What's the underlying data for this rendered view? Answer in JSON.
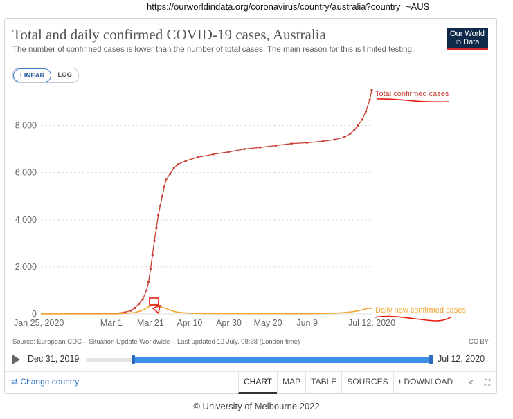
{
  "url_bar": {
    "text": "https://ourworldindata.org/coronavirus/country/australia?country=~AUS"
  },
  "header": {
    "title": "Total and daily confirmed COVID-19 cases, Australia",
    "subtitle": "The number of confirmed cases is lower than the number of total cases. The main reason for this is limited testing.",
    "logo_line1": "Our World",
    "logo_line2": "in Data"
  },
  "scale_toggle": {
    "linear": "LINEAR",
    "log": "LOG",
    "selected": "LINEAR"
  },
  "colors": {
    "total": "#c63f33",
    "daily": "#f0a631",
    "annotation": "#e81c0e",
    "grid": "#dddddd"
  },
  "chart_data": {
    "type": "line",
    "x_tick_labels": [
      "Jan 25, 2020",
      "Mar 1",
      "Mar 21",
      "Apr 10",
      "Apr 30",
      "May 20",
      "Jun 9",
      "Jul 12, 2020"
    ],
    "x_tick_days": [
      0,
      36,
      56,
      76,
      96,
      116,
      136,
      169
    ],
    "y_tick_labels": [
      "0",
      "2,000",
      "4,000",
      "6,000",
      "8,000"
    ],
    "y_tick_values": [
      0,
      2000,
      4000,
      6000,
      8000
    ],
    "ylim": [
      0,
      9600
    ],
    "xlim_days": [
      0,
      169
    ],
    "grid": true,
    "series": [
      {
        "name": "Total confirmed cases",
        "points": [
          [
            0,
            0
          ],
          [
            30,
            15
          ],
          [
            38,
            30
          ],
          [
            43,
            70
          ],
          [
            46,
            140
          ],
          [
            48,
            250
          ],
          [
            50,
            420
          ],
          [
            52,
            620
          ],
          [
            54,
            1000
          ],
          [
            55,
            1350
          ],
          [
            56,
            1900
          ],
          [
            57,
            2500
          ],
          [
            58,
            3100
          ],
          [
            59,
            3650
          ],
          [
            60,
            4200
          ],
          [
            61,
            4600
          ],
          [
            62,
            5000
          ],
          [
            63,
            5400
          ],
          [
            64,
            5700
          ],
          [
            66,
            5950
          ],
          [
            68,
            6200
          ],
          [
            70,
            6350
          ],
          [
            74,
            6500
          ],
          [
            80,
            6650
          ],
          [
            88,
            6780
          ],
          [
            96,
            6880
          ],
          [
            104,
            7000
          ],
          [
            112,
            7070
          ],
          [
            120,
            7150
          ],
          [
            128,
            7230
          ],
          [
            136,
            7270
          ],
          [
            144,
            7330
          ],
          [
            150,
            7400
          ],
          [
            155,
            7500
          ],
          [
            158,
            7650
          ],
          [
            160,
            7800
          ],
          [
            162,
            8000
          ],
          [
            164,
            8250
          ],
          [
            166,
            8600
          ],
          [
            168,
            9100
          ],
          [
            169,
            9500
          ]
        ]
      },
      {
        "name": "Daily new confirmed cases",
        "points": [
          [
            0,
            0
          ],
          [
            40,
            5
          ],
          [
            48,
            60
          ],
          [
            52,
            150
          ],
          [
            55,
            300
          ],
          [
            57,
            380
          ],
          [
            58,
            430
          ],
          [
            59,
            330
          ],
          [
            60,
            390
          ],
          [
            61,
            300
          ],
          [
            62,
            280
          ],
          [
            64,
            230
          ],
          [
            66,
            160
          ],
          [
            68,
            110
          ],
          [
            70,
            70
          ],
          [
            74,
            40
          ],
          [
            80,
            20
          ],
          [
            96,
            15
          ],
          [
            120,
            12
          ],
          [
            136,
            10
          ],
          [
            150,
            30
          ],
          [
            158,
            80
          ],
          [
            162,
            130
          ],
          [
            165,
            190
          ],
          [
            167,
            240
          ],
          [
            169,
            230
          ]
        ]
      }
    ]
  },
  "source": "Source: European CDC – Situation Update Worldwide – Last updated 12 July, 08:38 (London time)",
  "license": "CC BY",
  "timeline": {
    "start_label": "Dec 31, 2019",
    "end_label": "Jul 12, 2020",
    "range_start_fraction": 0.14,
    "range_end_fraction": 1.0
  },
  "footer": {
    "change_country": "Change country",
    "tabs": [
      "CHART",
      "MAP",
      "TABLE",
      "SOURCES",
      "DOWNLOAD"
    ],
    "active_tab": "CHART"
  },
  "icons": {
    "share": "share-icon",
    "fullscreen": "fullscreen-icon",
    "download": "download-icon",
    "swap": "swap-icon",
    "play": "play-icon"
  },
  "copyright": "© University of Melbourne 2022"
}
